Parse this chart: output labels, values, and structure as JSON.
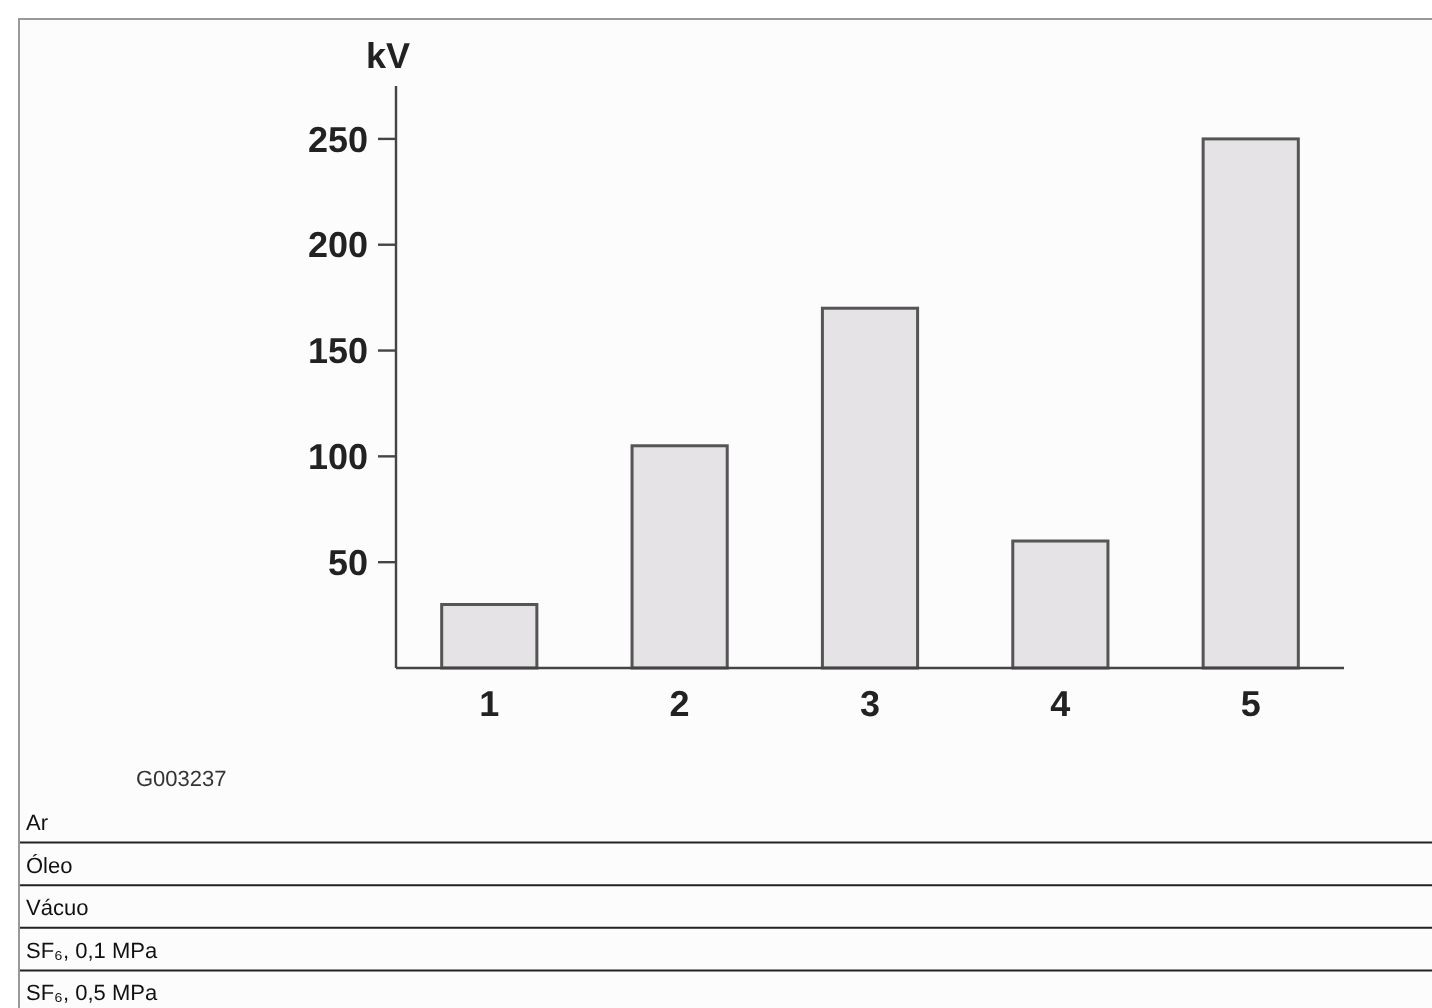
{
  "chart_data": {
    "type": "bar",
    "ylabel": "kV",
    "categories": [
      "1",
      "2",
      "3",
      "4",
      "5"
    ],
    "values": [
      30,
      105,
      170,
      60,
      250
    ],
    "color": "#e6e3e6",
    "ylim": [
      0,
      275
    ],
    "yticks": [
      50,
      100,
      150,
      200,
      250
    ],
    "grid": false,
    "annotations": [
      "G003237",
      "Ar",
      "Óleo",
      "Vácuo",
      "SF₆, 0,1 MPa",
      "SF₆, 0,5 MPa"
    ]
  }
}
